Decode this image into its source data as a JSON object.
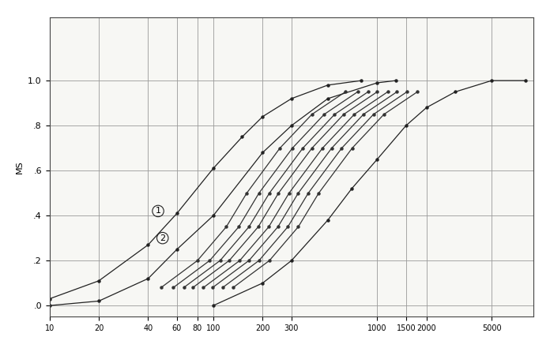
{
  "chart_data": {
    "type": "line",
    "ylabel": "MS",
    "log": "x",
    "grid": true,
    "xlim": [
      10,
      9000
    ],
    "ylim": [
      -0.05,
      1.28
    ],
    "xticks": [
      10,
      20,
      40,
      60,
      80,
      100,
      200,
      300,
      1000,
      1500,
      2000,
      5000
    ],
    "yticks": [
      {
        "value": 0,
        "label": ".0"
      },
      {
        "value": 0.2,
        "label": ".2"
      },
      {
        "value": 0.4,
        "label": ".4"
      },
      {
        "value": 0.6,
        "label": ".6"
      },
      {
        "value": 0.8,
        "label": ".8"
      },
      {
        "value": 1.0,
        "label": "1.0"
      }
    ],
    "annotations": [
      {
        "text": "1",
        "x": 46,
        "y": 0.42
      },
      {
        "text": "2",
        "x": 49,
        "y": 0.3
      }
    ],
    "series": [
      {
        "color": "#222222",
        "marker": "dot",
        "x": [
          10,
          20,
          40,
          60,
          100,
          150,
          200,
          300,
          500,
          800
        ],
        "values": [
          0.03,
          0.11,
          0.27,
          0.41,
          0.61,
          0.75,
          0.84,
          0.92,
          0.98,
          1.0
        ]
      },
      {
        "color": "#222222",
        "marker": "dot",
        "x": [
          10,
          20,
          40,
          60,
          100,
          200,
          300,
          500,
          1000,
          1300
        ],
        "values": [
          0.0,
          0.02,
          0.12,
          0.25,
          0.4,
          0.68,
          0.8,
          0.92,
          0.99,
          1.0
        ]
      },
      {
        "color": "#333333",
        "marker": "dot",
        "x": [
          48,
          80,
          120,
          160,
          255,
          400,
          640
        ],
        "values": [
          0.08,
          0.2,
          0.35,
          0.5,
          0.7,
          0.85,
          0.95
        ]
      },
      {
        "color": "#333333",
        "marker": "dot",
        "x": [
          57,
          95,
          143,
          190,
          304,
          475,
          760
        ],
        "values": [
          0.08,
          0.2,
          0.35,
          0.5,
          0.7,
          0.85,
          0.95
        ]
      },
      {
        "color": "#333333",
        "marker": "dot",
        "x": [
          66,
          110,
          165,
          220,
          352,
          550,
          880
        ],
        "values": [
          0.08,
          0.2,
          0.35,
          0.5,
          0.7,
          0.85,
          0.95
        ]
      },
      {
        "color": "#333333",
        "marker": "dot",
        "x": [
          75,
          125,
          188,
          250,
          400,
          625,
          1000
        ],
        "values": [
          0.08,
          0.2,
          0.35,
          0.5,
          0.7,
          0.85,
          0.95
        ]
      },
      {
        "color": "#333333",
        "marker": "dot",
        "x": [
          87,
          145,
          218,
          290,
          464,
          725,
          1160
        ],
        "values": [
          0.08,
          0.2,
          0.35,
          0.5,
          0.7,
          0.85,
          0.95
        ]
      },
      {
        "color": "#333333",
        "marker": "dot",
        "x": [
          99,
          165,
          248,
          330,
          528,
          825,
          1320
        ],
        "values": [
          0.08,
          0.2,
          0.35,
          0.5,
          0.7,
          0.85,
          0.95
        ]
      },
      {
        "color": "#333333",
        "marker": "dot",
        "x": [
          114,
          190,
          285,
          380,
          608,
          950,
          1520
        ],
        "values": [
          0.08,
          0.2,
          0.35,
          0.5,
          0.7,
          0.85,
          0.95
        ]
      },
      {
        "color": "#333333",
        "marker": "dot",
        "x": [
          132,
          220,
          330,
          440,
          704,
          1100,
          1760
        ],
        "values": [
          0.08,
          0.2,
          0.35,
          0.5,
          0.7,
          0.85,
          0.95
        ]
      },
      {
        "color": "#222222",
        "marker": "dot",
        "x": [
          100,
          200,
          300,
          500,
          700,
          1000,
          1500,
          2000,
          3000,
          5000,
          8000
        ],
        "values": [
          0.0,
          0.1,
          0.2,
          0.38,
          0.52,
          0.65,
          0.8,
          0.88,
          0.95,
          1.0,
          1.0
        ]
      }
    ]
  }
}
